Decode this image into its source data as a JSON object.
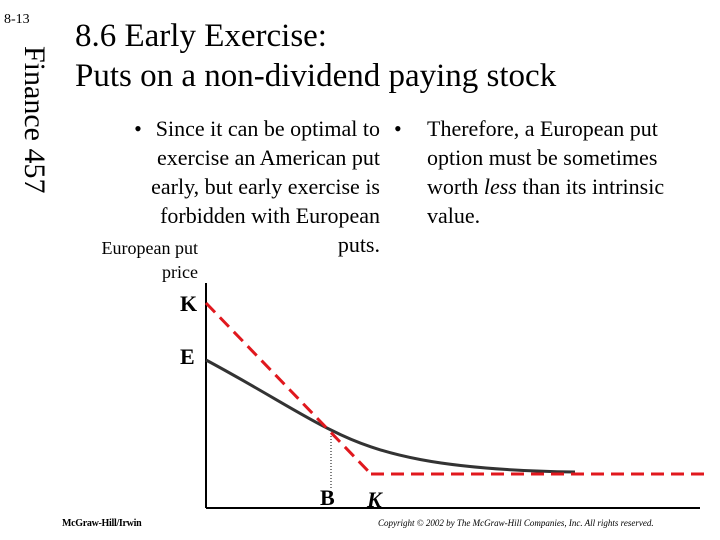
{
  "slide": {
    "number": "8-13",
    "side_title": "Finance 457",
    "title_lines": [
      "8.6 Early Exercise:",
      "Puts on a non-dividend paying stock"
    ]
  },
  "bullets": {
    "left": {
      "marker": "•",
      "lines": [
        "Since it can be optimal to",
        "exercise an American put",
        "early, but early exercise is",
        "forbidden with European",
        "puts."
      ]
    },
    "right": {
      "marker": "•",
      "text_before": "Therefore, a European put option must be sometimes worth ",
      "emphasis": "less",
      "text_after": " than its intrinsic value."
    }
  },
  "chart": {
    "y_label_lines": [
      "European put",
      "price"
    ],
    "y_tick_K": "K",
    "y_tick_E": "E",
    "x_tick_B": "B",
    "x_tick_K": "K",
    "colors": {
      "intrinsic_value_line": "#e0181e",
      "european_put_curve": "#333333",
      "axes": "#000000"
    }
  },
  "footer": {
    "publisher": "McGraw-Hill/Irwin",
    "copyright": "Copyright © 2002 by The McGraw-Hill Companies, Inc.  All rights reserved."
  }
}
